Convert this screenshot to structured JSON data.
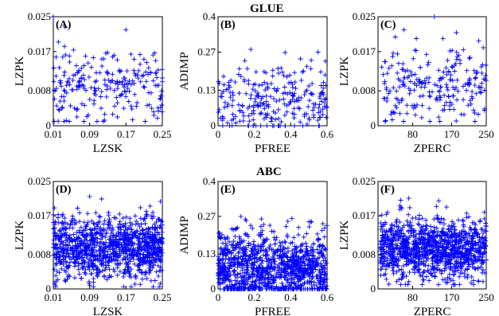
{
  "figure": {
    "group_titles": [
      "GLUE",
      "ABC"
    ]
  },
  "chart_data": [
    {
      "type": "scatter",
      "panel": "(A)",
      "group": "GLUE",
      "xlabel": "LZSK",
      "ylabel": "LZPK",
      "xlim": [
        0.01,
        0.25
      ],
      "ylim": [
        0,
        0.025
      ],
      "xticks": [
        "0.01",
        "0.09",
        "0.17",
        "0.25"
      ],
      "yticks": [
        "0",
        "0.008",
        "0.017",
        "0.025"
      ],
      "xtick_values": [
        0.01,
        0.09,
        0.17,
        0.25
      ],
      "ytick_values": [
        0,
        0.008,
        0.017,
        0.025
      ],
      "n_points": 230,
      "x_range": [
        0.01,
        0.25
      ],
      "y_range": [
        0.001,
        0.024
      ],
      "y_center": 0.0095,
      "y_spread": 0.004,
      "outliers": [
        [
          0.01,
          0.025
        ],
        [
          0.17,
          0.022
        ],
        [
          0.012,
          0.001
        ]
      ]
    },
    {
      "type": "scatter",
      "panel": "(B)",
      "group": "GLUE",
      "xlabel": "PFREE",
      "ylabel": "ADIMP",
      "xlim": [
        0,
        0.6
      ],
      "ylim": [
        0,
        0.4
      ],
      "xticks": [
        "0",
        "0.2",
        "0.4",
        "0.6"
      ],
      "yticks": [
        "0",
        "0.13",
        "0.27",
        "0.4"
      ],
      "xtick_values": [
        0,
        0.2,
        0.4,
        0.6
      ],
      "ytick_values": [
        0,
        0.13,
        0.27,
        0.4
      ],
      "n_points": 260,
      "x_range": [
        0,
        0.6
      ],
      "y_range": [
        0,
        0.3
      ],
      "y_center": 0.09,
      "y_spread": 0.07,
      "outliers": [
        [
          0.18,
          0.28
        ],
        [
          0.55,
          0.27
        ]
      ]
    },
    {
      "type": "scatter",
      "panel": "(C)",
      "group": "GLUE",
      "xlabel": "ZPERC",
      "ylabel": "LZPK",
      "xlim": [
        0,
        250
      ],
      "ylim": [
        0,
        0.025
      ],
      "xticks": [
        "80",
        "170",
        "250"
      ],
      "yticks": [
        "0",
        "0.008",
        "0.017",
        "0.025"
      ],
      "xtick_values": [
        80,
        170,
        250
      ],
      "ytick_values": [
        0,
        0.008,
        0.017,
        0.025
      ],
      "n_points": 230,
      "x_range": [
        5,
        250
      ],
      "y_range": [
        0.001,
        0.024
      ],
      "y_center": 0.0095,
      "y_spread": 0.0045,
      "outliers": [
        [
          130,
          0.025
        ],
        [
          150,
          0.02
        ],
        [
          60,
          0.022
        ]
      ]
    },
    {
      "type": "scatter",
      "panel": "(D)",
      "group": "ABC",
      "xlabel": "LZSK",
      "ylabel": "LZPK",
      "xlim": [
        0.01,
        0.25
      ],
      "ylim": [
        0,
        0.025
      ],
      "xticks": [
        "0.01",
        "0.09",
        "0.17",
        "0.25"
      ],
      "yticks": [
        "0",
        "0.008",
        "0.017",
        "0.025"
      ],
      "xtick_values": [
        0.01,
        0.09,
        0.17,
        0.25
      ],
      "ytick_values": [
        0,
        0.008,
        0.017,
        0.025
      ],
      "n_points": 1100,
      "x_range": [
        0.01,
        0.25
      ],
      "y_range": [
        0.0005,
        0.024
      ],
      "y_center": 0.0095,
      "y_spread": 0.0035,
      "outliers": [
        [
          0.09,
          0.0215
        ],
        [
          0.015,
          0.0005
        ]
      ]
    },
    {
      "type": "scatter",
      "panel": "(E)",
      "group": "ABC",
      "xlabel": "PFREE",
      "ylabel": "ADIMP",
      "xlim": [
        0,
        0.6
      ],
      "ylim": [
        0,
        0.4
      ],
      "xticks": [
        "0",
        "0.2",
        "0.4",
        "0.6"
      ],
      "yticks": [
        "0",
        "0.13",
        "0.27",
        "0.4"
      ],
      "xtick_values": [
        0,
        0.2,
        0.4,
        0.6
      ],
      "ytick_values": [
        0,
        0.13,
        0.27,
        0.4
      ],
      "n_points": 1100,
      "x_range": [
        0,
        0.6
      ],
      "y_range": [
        0,
        0.27
      ],
      "y_center": 0.08,
      "y_spread": 0.065,
      "outliers": [
        [
          0.15,
          0.26
        ],
        [
          0.5,
          0.25
        ]
      ]
    },
    {
      "type": "scatter",
      "panel": "(F)",
      "group": "ABC",
      "xlabel": "ZPERC",
      "ylabel": "LZPK",
      "xlim": [
        0,
        250
      ],
      "ylim": [
        0,
        0.025
      ],
      "xticks": [
        "80",
        "170",
        "250"
      ],
      "yticks": [
        "0",
        "0.008",
        "0.017",
        "0.025"
      ],
      "xtick_values": [
        80,
        170,
        250
      ],
      "ytick_values": [
        0,
        0.008,
        0.017,
        0.025
      ],
      "n_points": 1100,
      "x_range": [
        5,
        250
      ],
      "y_range": [
        0.001,
        0.0215
      ],
      "y_center": 0.0095,
      "y_spread": 0.0035,
      "outliers": [
        [
          140,
          0.0205
        ],
        [
          50,
          0.0185
        ]
      ]
    }
  ]
}
